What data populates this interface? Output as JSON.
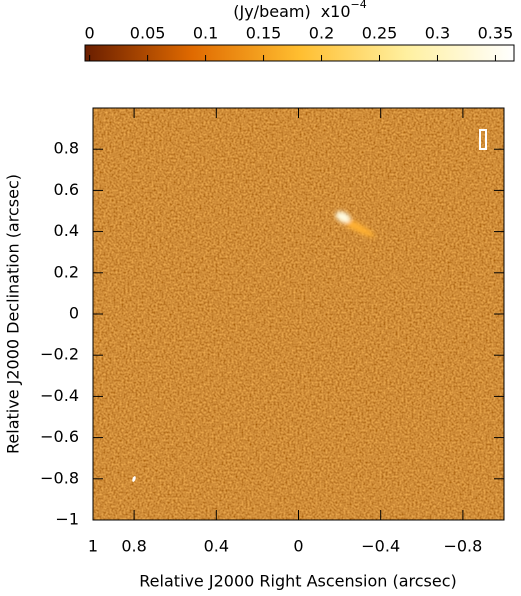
{
  "chart_data": {
    "type": "image",
    "xlabel": "Relative J2000 Right Ascension (arcsec)",
    "ylabel": "Relative J2000 Declination (arcsec)",
    "xlim": [
      1,
      -1
    ],
    "xticks": [
      1,
      0.8,
      0.4,
      0,
      {
        "value": -0.4,
        "label": "−0.4"
      },
      {
        "value": -0.8,
        "label": "−0.8"
      }
    ],
    "ylim": [
      -1,
      1
    ],
    "yticks": [
      0.8,
      0.6,
      0.4,
      0.2,
      0,
      {
        "value": -0.2,
        "label": "−0.2"
      },
      {
        "value": -0.4,
        "label": "−0.4"
      },
      {
        "value": -0.6,
        "label": "−0.6"
      },
      {
        "value": -0.8,
        "label": "−0.8"
      },
      {
        "value": -1,
        "label": "−1"
      }
    ],
    "grid": false,
    "colorbar": {
      "label": "(Jy/beam)",
      "scale": "x10",
      "exponent": "−4",
      "lim": [
        -0.004,
        0.366
      ],
      "ticks": [
        0,
        0.05,
        0.1,
        0.15,
        0.2,
        0.25,
        0.3,
        0.35
      ]
    }
  }
}
